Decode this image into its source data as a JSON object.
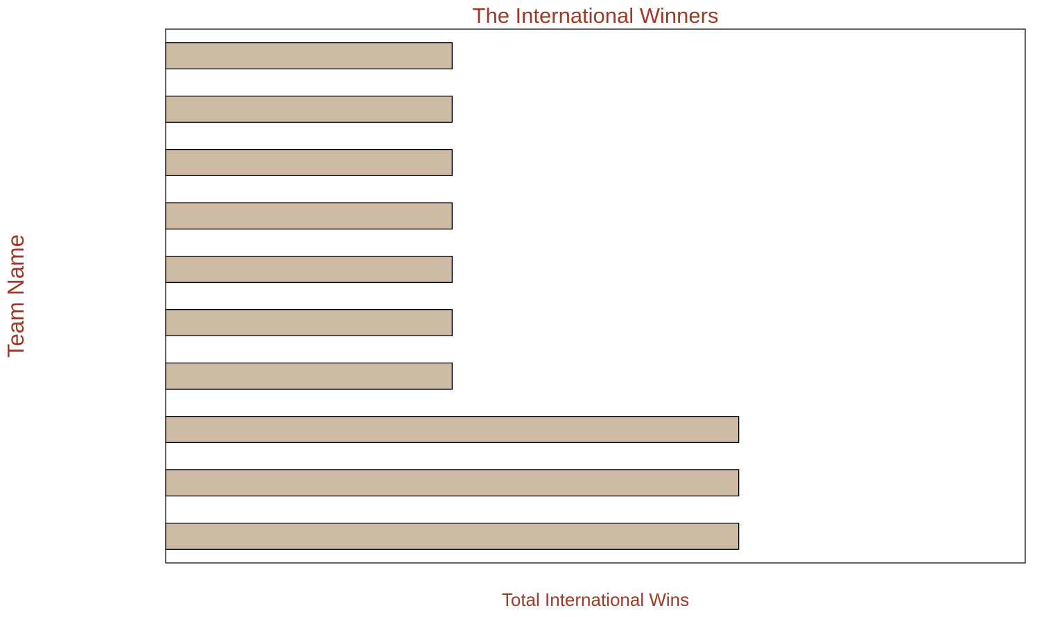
{
  "chart_data": {
    "type": "bar",
    "orientation": "horizontal",
    "title": "The International Winners",
    "xlabel": "Total International Wins",
    "ylabel": "Team Name",
    "values": [
      1,
      1,
      1,
      1,
      1,
      1,
      1,
      2,
      2,
      2
    ],
    "xlim": [
      0,
      3
    ],
    "x_ticks_visible": false,
    "y_ticks_visible": false,
    "grid": false,
    "legend": "none",
    "colors": {
      "bar_fill": "#cdbba6",
      "bar_edge": "#000000",
      "text": "#a03a26",
      "frame": "#333333"
    }
  }
}
